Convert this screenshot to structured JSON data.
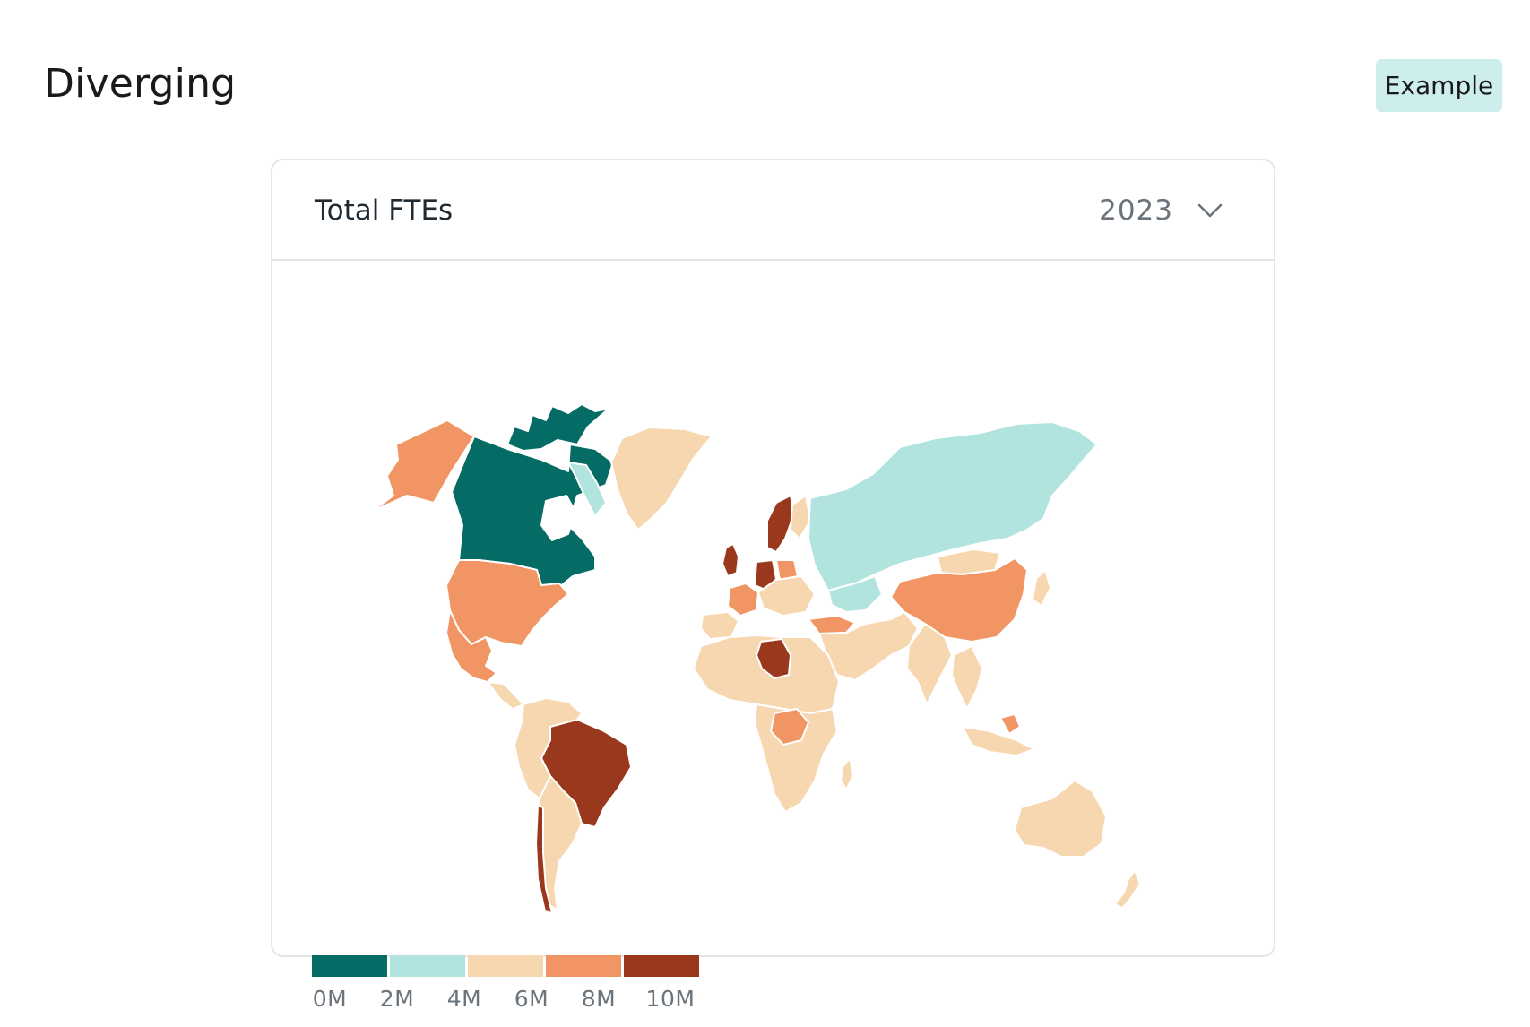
{
  "page": {
    "title": "Diverging",
    "tag": "Example"
  },
  "card": {
    "title": "Total FTEs",
    "year": "2023",
    "select_icon": "chevron-down-icon"
  },
  "colors": {
    "c0": "#056b65",
    "c1": "#b1e4de",
    "c2": "#f7d7b0",
    "c3": "#f09563",
    "c4": "#9a381d"
  },
  "legend": {
    "swatches": [
      "#056b65",
      "#b1e4de",
      "#f7d7b0",
      "#f09563",
      "#9a381d"
    ],
    "labels": [
      "0M",
      "2M",
      "4M",
      "6M",
      "8M",
      "10M"
    ]
  },
  "chart_data": {
    "type": "choropleth",
    "metric": "Total FTEs",
    "year": "2023",
    "scale_breaks_millions": [
      0,
      2,
      4,
      6,
      8,
      10
    ],
    "bins": [
      {
        "range": "0M-2M",
        "regions": [
          "Canada"
        ]
      },
      {
        "range": "2M-4M",
        "regions": [
          "Russia",
          "Kazakhstan"
        ]
      },
      {
        "range": "4M-6M",
        "regions": [
          "Greenland",
          "Africa (most)",
          "Middle East",
          "India",
          "Mongolia",
          "Southeast Asia",
          "Australia",
          "New Zealand",
          "South America (most)"
        ]
      },
      {
        "range": "6M-8M",
        "regions": [
          "Alaska",
          "United States",
          "Mexico",
          "France",
          "Poland",
          "Turkey",
          "China",
          "DR Congo",
          "Indonesia"
        ]
      },
      {
        "range": "8M-10M",
        "regions": [
          "Brazil",
          "Libya",
          "United Kingdom",
          "Germany",
          "Sweden",
          "Chile"
        ]
      }
    ]
  }
}
